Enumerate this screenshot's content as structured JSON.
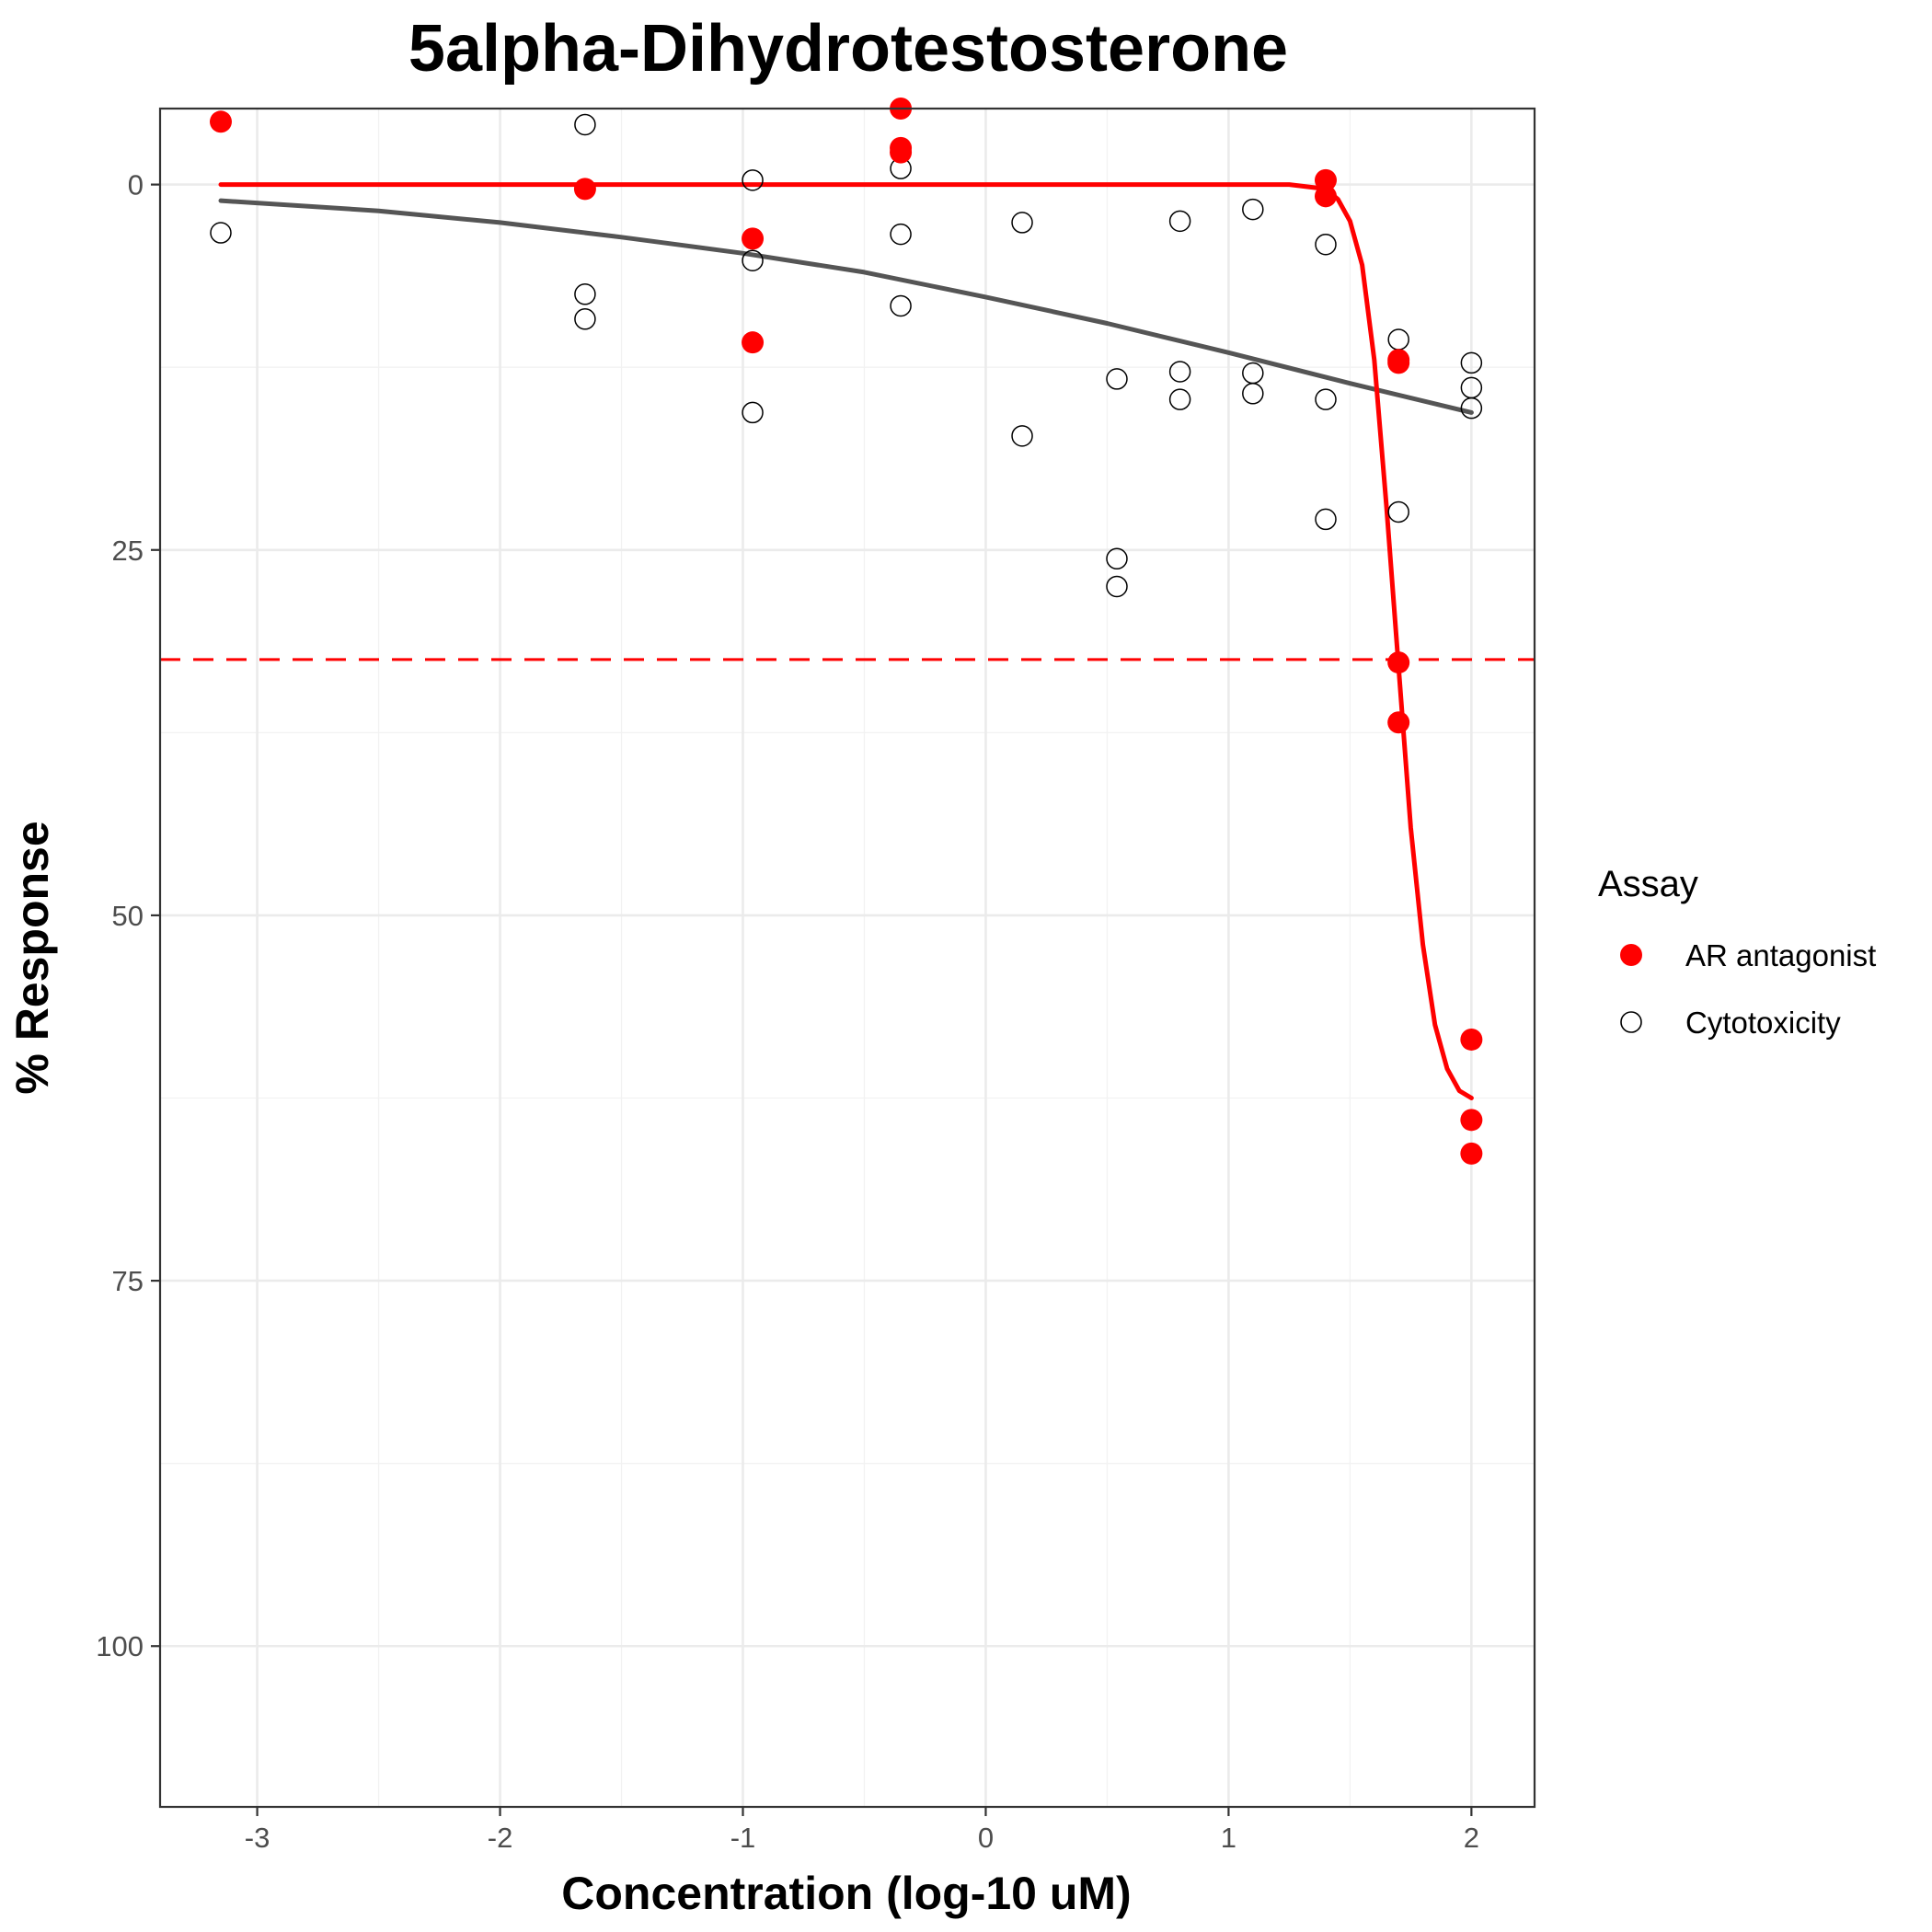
{
  "chart_data": {
    "type": "scatter",
    "title": "5alpha-Dihydrotestosterone",
    "xlabel": "Concentration (log-10 uM)",
    "ylabel": "% Response",
    "xlim": [
      -3.4,
      2.26
    ],
    "ylim": [
      -5.2,
      111
    ],
    "y_reversed": true,
    "x_ticks": [
      -3,
      -2,
      -1,
      0,
      1,
      2
    ],
    "x_tick_labels": [
      "-3",
      "-2",
      "-1",
      "0",
      "1",
      "2"
    ],
    "y_ticks": [
      0,
      25,
      50,
      75,
      100
    ],
    "y_tick_labels": [
      "0",
      "25",
      "50",
      "75",
      "100"
    ],
    "grid": true,
    "threshold_line": {
      "y": 32.5,
      "color": "#ff0000",
      "style": "dashed"
    },
    "legend": {
      "title": "Assay",
      "placement": "right",
      "entries": [
        {
          "label": "AR antagonist",
          "marker": "filled-circle",
          "color": "#ff0000"
        },
        {
          "label": "Cytotoxicity",
          "marker": "open-circle",
          "color": "#000000"
        }
      ]
    },
    "series": [
      {
        "name": "AR antagonist",
        "marker": "filled-circle",
        "color": "#ff0000",
        "points": [
          [
            -3.15,
            -4.3
          ],
          [
            -1.65,
            0.3
          ],
          [
            -0.96,
            3.7
          ],
          [
            -0.96,
            10.8
          ],
          [
            -0.35,
            -5.2
          ],
          [
            -0.35,
            -2.5
          ],
          [
            -0.35,
            -2.2
          ],
          [
            1.4,
            -0.3
          ],
          [
            1.4,
            0.8
          ],
          [
            1.7,
            12.0
          ],
          [
            1.7,
            12.2
          ],
          [
            1.7,
            32.7
          ],
          [
            1.7,
            36.8
          ],
          [
            2.0,
            58.5
          ],
          [
            2.0,
            64.0
          ],
          [
            2.0,
            66.3
          ]
        ],
        "curve_color": "#ff0000",
        "curve": [
          [
            -3.15,
            0.0
          ],
          [
            1.25,
            0.0
          ],
          [
            1.4,
            0.3
          ],
          [
            1.45,
            1.0
          ],
          [
            1.5,
            2.5
          ],
          [
            1.55,
            5.5
          ],
          [
            1.6,
            12.0
          ],
          [
            1.65,
            22.0
          ],
          [
            1.7,
            33.0
          ],
          [
            1.75,
            44.0
          ],
          [
            1.8,
            52.0
          ],
          [
            1.85,
            57.5
          ],
          [
            1.9,
            60.5
          ],
          [
            1.95,
            62.0
          ],
          [
            2.0,
            62.5
          ]
        ]
      },
      {
        "name": "Cytotoxicity",
        "marker": "open-circle",
        "color": "#000000",
        "points": [
          [
            -3.15,
            3.3
          ],
          [
            -1.65,
            -4.1
          ],
          [
            -1.65,
            7.5
          ],
          [
            -1.65,
            9.2
          ],
          [
            -0.96,
            -0.3
          ],
          [
            -0.96,
            5.2
          ],
          [
            -0.96,
            15.6
          ],
          [
            -0.35,
            -1.1
          ],
          [
            -0.35,
            3.4
          ],
          [
            -0.35,
            8.3
          ],
          [
            0.15,
            2.6
          ],
          [
            0.15,
            17.2
          ],
          [
            0.54,
            13.3
          ],
          [
            0.54,
            25.6
          ],
          [
            0.54,
            27.5
          ],
          [
            0.8,
            2.5
          ],
          [
            0.8,
            12.8
          ],
          [
            0.8,
            14.7
          ],
          [
            1.1,
            1.7
          ],
          [
            1.1,
            12.9
          ],
          [
            1.1,
            14.3
          ],
          [
            1.4,
            4.1
          ],
          [
            1.4,
            14.7
          ],
          [
            1.4,
            22.9
          ],
          [
            1.7,
            10.6
          ],
          [
            1.7,
            12.1
          ],
          [
            1.7,
            22.4
          ],
          [
            2.0,
            12.2
          ],
          [
            2.0,
            13.9
          ],
          [
            2.0,
            15.3
          ]
        ],
        "curve_color": "#555555",
        "curve": [
          [
            -3.15,
            1.1
          ],
          [
            -2.5,
            1.8
          ],
          [
            -2.0,
            2.6
          ],
          [
            -1.5,
            3.6
          ],
          [
            -1.0,
            4.7
          ],
          [
            -0.5,
            6.0
          ],
          [
            0.0,
            7.7
          ],
          [
            0.5,
            9.5
          ],
          [
            1.0,
            11.5
          ],
          [
            1.5,
            13.6
          ],
          [
            2.0,
            15.6
          ]
        ]
      }
    ]
  }
}
